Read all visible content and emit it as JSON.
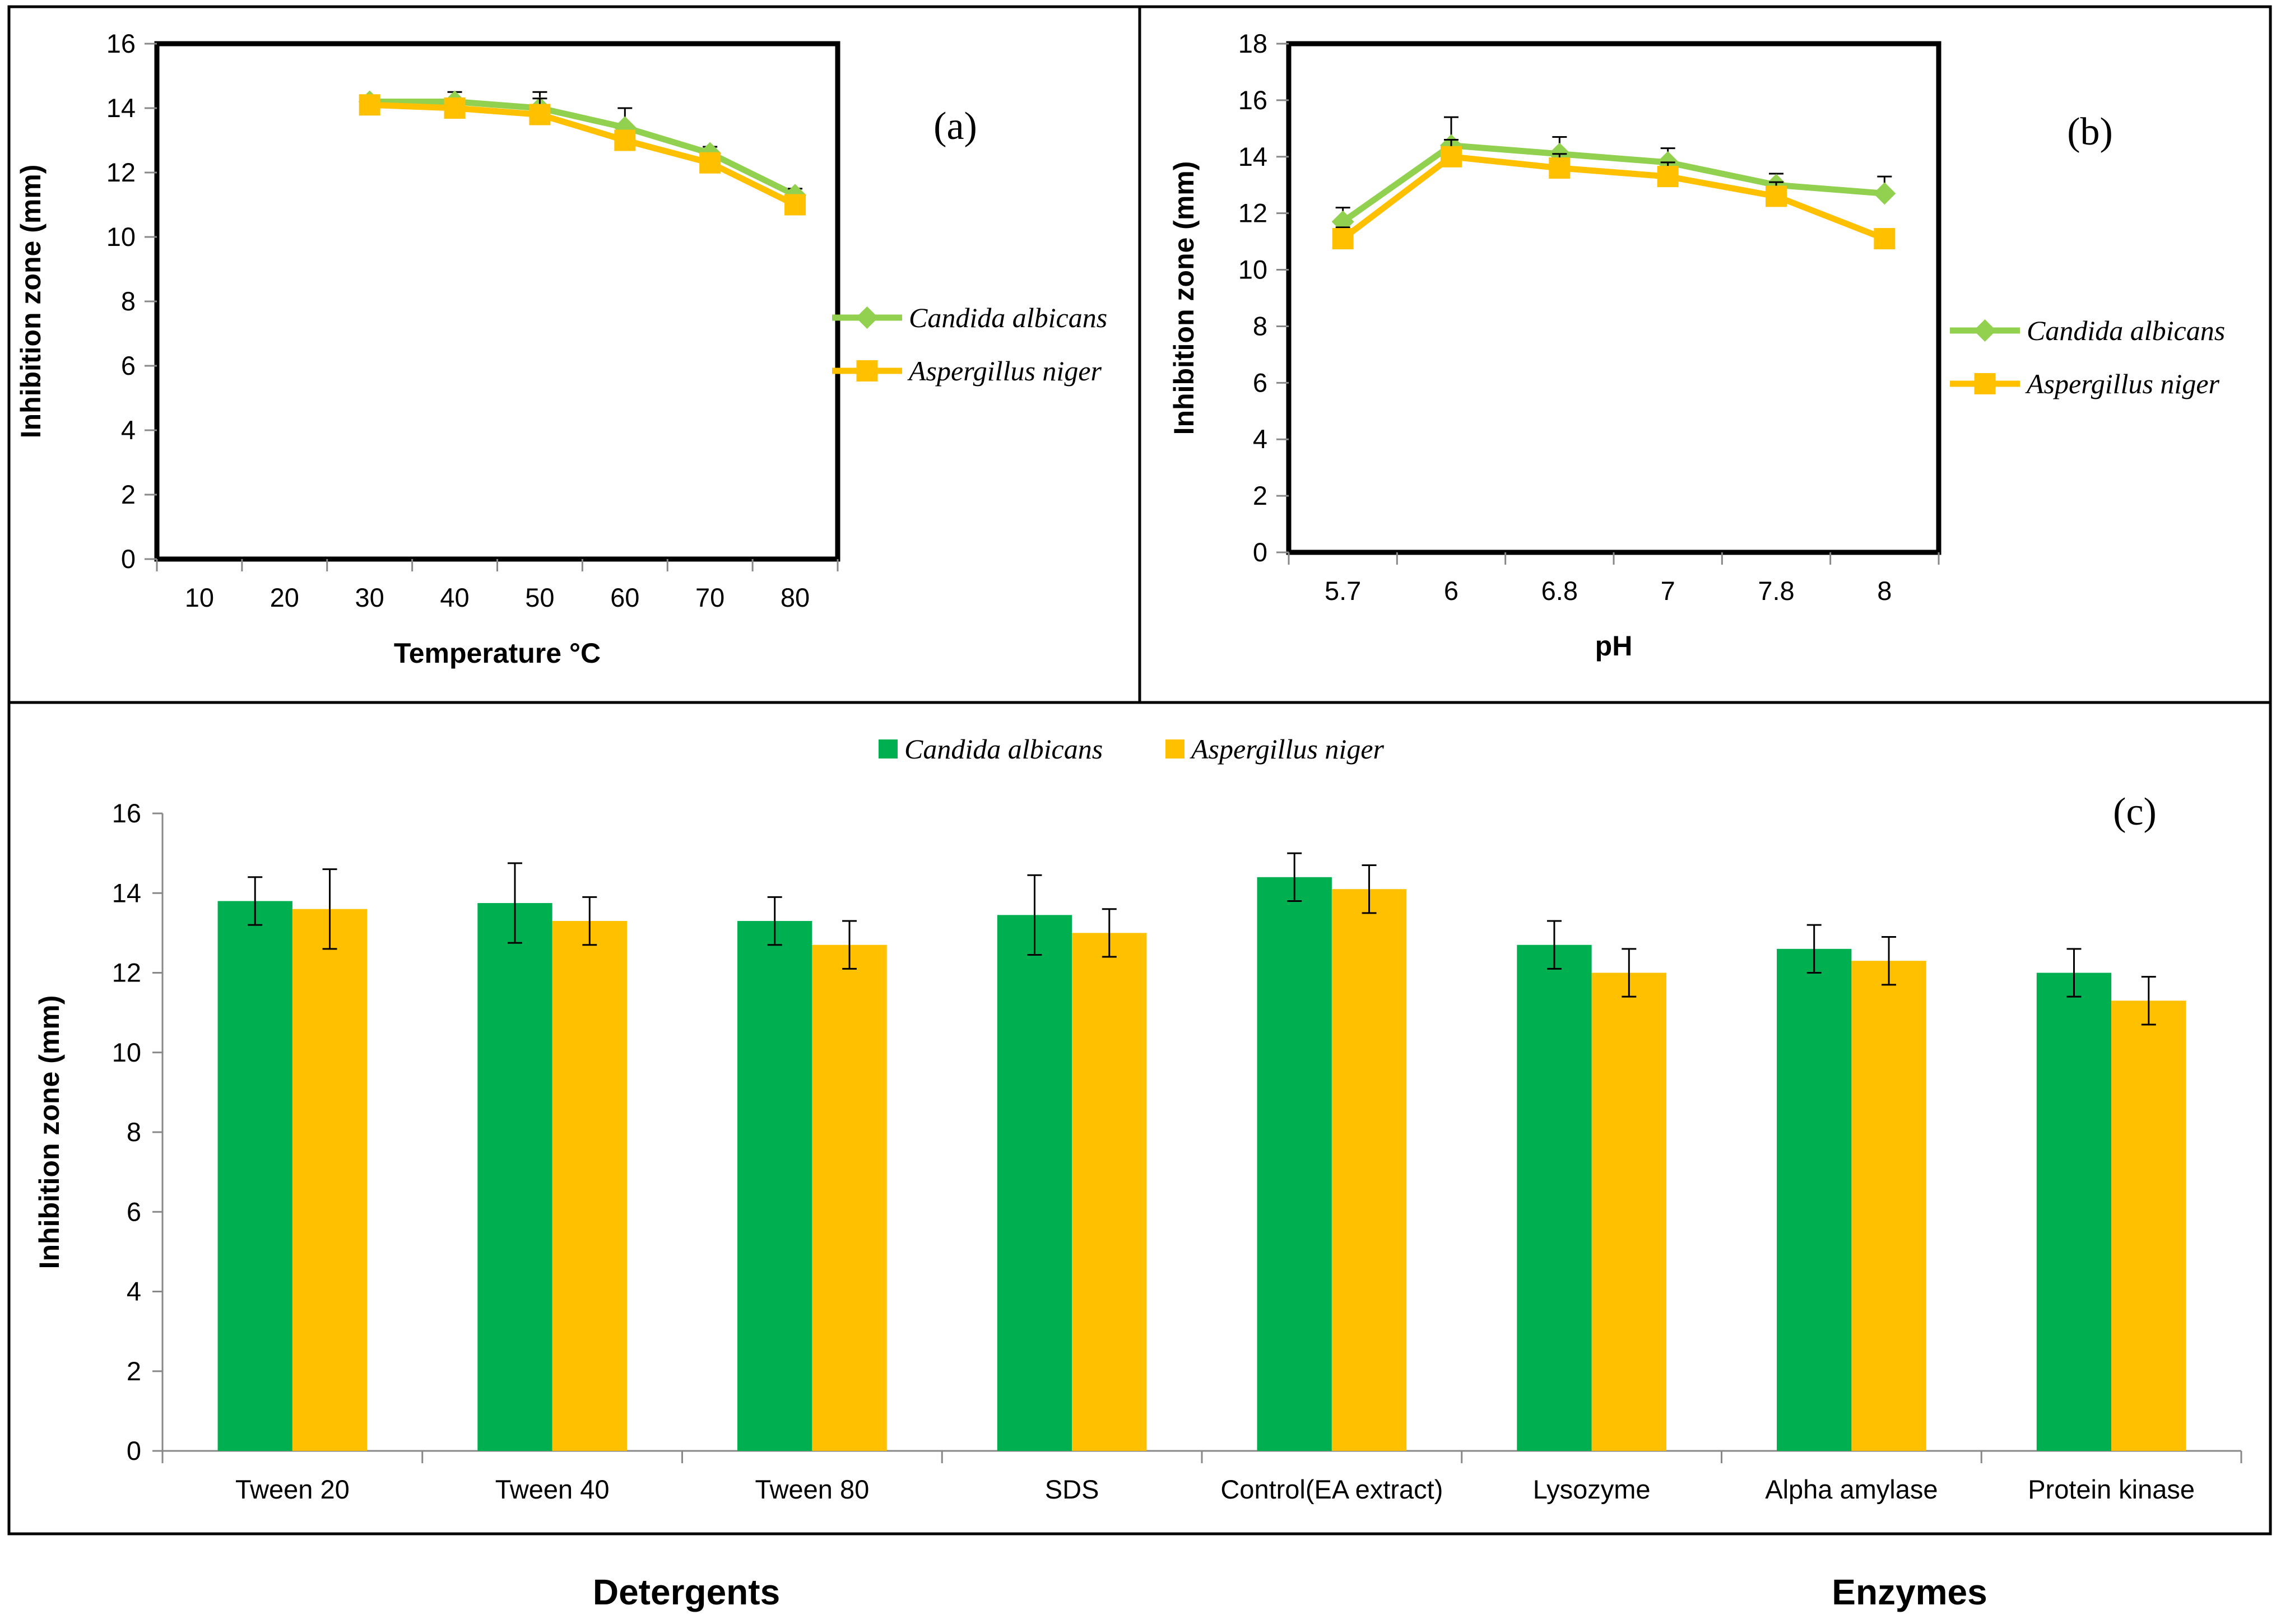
{
  "chart_data": [
    {
      "id": "a",
      "type": "line",
      "panel_label": "(a)",
      "xlabel": "Temperature °C",
      "ylabel": "Inhibition zone (mm)",
      "ylim": [
        0,
        16
      ],
      "yticks": [
        "0",
        "2",
        "4",
        "6",
        "8",
        "10",
        "12",
        "14",
        "16"
      ],
      "categories": [
        "10",
        "20",
        "30",
        "40",
        "50",
        "60",
        "70",
        "80"
      ],
      "series": [
        {
          "name": "Candida albicans",
          "color": "#92D050",
          "marker": "diamond",
          "values": [
            null,
            null,
            14.2,
            14.2,
            14.0,
            13.4,
            12.6,
            11.3
          ],
          "errors": [
            null,
            null,
            0.2,
            0.3,
            0.5,
            0.6,
            0.2,
            0.2
          ]
        },
        {
          "name": "Aspergillus niger",
          "color": "#FFC000",
          "marker": "square",
          "values": [
            null,
            null,
            14.1,
            14.0,
            13.8,
            13.0,
            12.3,
            11.0
          ],
          "errors": [
            null,
            null,
            0.2,
            0.3,
            0.5,
            0.3,
            0.2,
            0.2
          ]
        }
      ],
      "legend_position": "right"
    },
    {
      "id": "b",
      "type": "line",
      "panel_label": "(b)",
      "xlabel": "pH",
      "ylabel": "Inhibition zone (mm)",
      "ylim": [
        0,
        18
      ],
      "yticks": [
        "0",
        "2",
        "4",
        "6",
        "8",
        "10",
        "12",
        "14",
        "16",
        "18"
      ],
      "categories": [
        "5.7",
        "6",
        "6.8",
        "7",
        "7.8",
        "8"
      ],
      "series": [
        {
          "name": "Candida albicans",
          "color": "#92D050",
          "marker": "diamond",
          "values": [
            11.7,
            14.4,
            14.1,
            13.8,
            13.0,
            12.7
          ],
          "errors": [
            0.5,
            1.0,
            0.6,
            0.5,
            0.4,
            0.6
          ]
        },
        {
          "name": "Aspergillus niger",
          "color": "#FFC000",
          "marker": "square",
          "values": [
            11.1,
            14.0,
            13.6,
            13.3,
            12.6,
            11.1
          ],
          "errors": [
            0.4,
            0.6,
            0.5,
            0.5,
            0.5,
            0.3
          ]
        }
      ],
      "legend_position": "right"
    },
    {
      "id": "c",
      "type": "bar",
      "panel_label": "(c)",
      "xlabel": "",
      "ylabel": "Inhibition zone (mm)",
      "ylim": [
        0,
        16
      ],
      "yticks": [
        "0",
        "2",
        "4",
        "6",
        "8",
        "10",
        "12",
        "14",
        "16"
      ],
      "categories": [
        "Tween 20",
        "Tween 40",
        "Tween 80",
        "SDS",
        "Control(EA extract)",
        "Lysozyme",
        "Alpha amylase",
        "Protein kinase"
      ],
      "series": [
        {
          "name": "Candida albicans",
          "color": "#00B050",
          "values": [
            13.8,
            13.75,
            13.3,
            13.45,
            14.4,
            12.7,
            12.6,
            12.0
          ],
          "errors": [
            0.6,
            1.0,
            0.6,
            1.0,
            0.6,
            0.6,
            0.6,
            0.6
          ]
        },
        {
          "name": "Aspergillus niger",
          "color": "#FFC000",
          "values": [
            13.6,
            13.3,
            12.7,
            13.0,
            14.1,
            12.0,
            12.3,
            11.3
          ],
          "errors": [
            1.0,
            0.6,
            0.6,
            0.6,
            0.6,
            0.6,
            0.6,
            0.6
          ]
        }
      ],
      "legend_position": "top-center",
      "group_labels": [
        "Detergents",
        "Enzymes"
      ]
    }
  ]
}
